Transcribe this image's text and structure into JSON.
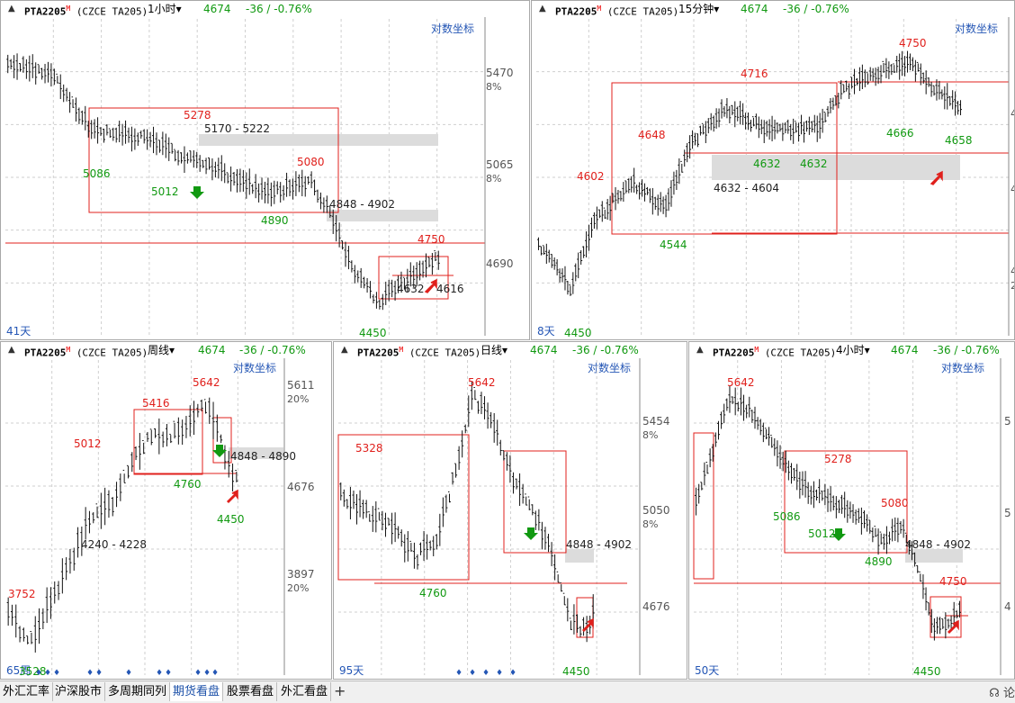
{
  "colors": {
    "up": "#000000",
    "red": "#e0201c",
    "green": "#119911",
    "blue": "#2456b5",
    "zone": "#dcdcdc"
  },
  "panels": [
    {
      "id": "p1",
      "symbol": "PTA2205",
      "m": "M",
      "code": "(CZCE TA205)",
      "period": "1小时",
      "price": "4674",
      "change": "-36 / -0.76%",
      "log_label": "对数坐标",
      "days": "41天",
      "right_labels": [
        {
          "t": "5470",
          "s": "8%"
        },
        {
          "t": "5065",
          "s": "8%"
        },
        {
          "t": "4690",
          "s": ""
        }
      ],
      "annotations": [
        {
          "t": "5278",
          "c": "red"
        },
        {
          "t": "5080",
          "c": "red"
        },
        {
          "t": "4750",
          "c": "red"
        },
        {
          "t": "5086",
          "c": "green"
        },
        {
          "t": "5012",
          "c": "green"
        },
        {
          "t": "4890",
          "c": "green"
        },
        {
          "t": "4450",
          "c": "green"
        },
        {
          "t": "5170 - 5222",
          "c": "black"
        },
        {
          "t": "4848 - 4902",
          "c": "black"
        },
        {
          "t": "4632",
          "c": "black"
        },
        {
          "t": "4616",
          "c": "black"
        }
      ]
    },
    {
      "id": "p2",
      "symbol": "PTA2205",
      "m": "M",
      "code": "(CZCE TA205)",
      "period": "15分钟",
      "price": "4674",
      "change": "-36 / -0.76%",
      "log_label": "对数坐标",
      "days": "8天",
      "right_labels": [
        {
          "t": "4",
          "s": ""
        },
        {
          "t": "4",
          "s": ""
        },
        {
          "t": "4",
          "s": "2"
        }
      ],
      "annotations": [
        {
          "t": "4750",
          "c": "red"
        },
        {
          "t": "4716",
          "c": "red"
        },
        {
          "t": "4648",
          "c": "red"
        },
        {
          "t": "4602",
          "c": "red"
        },
        {
          "t": "4666",
          "c": "green"
        },
        {
          "t": "4658",
          "c": "green"
        },
        {
          "t": "4632",
          "c": "green"
        },
        {
          "t": "4632",
          "c": "green"
        },
        {
          "t": "4544",
          "c": "green"
        },
        {
          "t": "4450",
          "c": "green"
        },
        {
          "t": "4632 - 4604",
          "c": "black"
        }
      ]
    },
    {
      "id": "p3",
      "symbol": "PTA2205",
      "m": "M",
      "code": "(CZCE TA205)",
      "period": "周线",
      "price": "4674",
      "change": "-36 / -0.76%",
      "log_label": "对数坐标",
      "days": "65周",
      "right_labels": [
        {
          "t": "5611",
          "s": "20%"
        },
        {
          "t": "4676",
          "s": ""
        },
        {
          "t": "3897",
          "s": "20%"
        }
      ],
      "annotations": [
        {
          "t": "5642",
          "c": "red"
        },
        {
          "t": "5416",
          "c": "red"
        },
        {
          "t": "5012",
          "c": "red"
        },
        {
          "t": "3752",
          "c": "red"
        },
        {
          "t": "4760",
          "c": "green"
        },
        {
          "t": "4450",
          "c": "green"
        },
        {
          "t": "3528",
          "c": "green"
        },
        {
          "t": "4848 - 4890",
          "c": "black"
        },
        {
          "t": "4240 - 4228",
          "c": "black"
        }
      ]
    },
    {
      "id": "p4",
      "symbol": "PTA2205",
      "m": "M",
      "code": "(CZCE TA205)",
      "period": "日线",
      "price": "4674",
      "change": "-36 / -0.76%",
      "log_label": "对数坐标",
      "days": "95天",
      "right_labels": [
        {
          "t": "5454",
          "s": "8%"
        },
        {
          "t": "5050",
          "s": "8%"
        },
        {
          "t": "4676",
          "s": ""
        }
      ],
      "annotations": [
        {
          "t": "5642",
          "c": "red"
        },
        {
          "t": "5328",
          "c": "red"
        },
        {
          "t": "4760",
          "c": "green"
        },
        {
          "t": "4450",
          "c": "green"
        },
        {
          "t": "4848 - 4902",
          "c": "black"
        }
      ]
    },
    {
      "id": "p5",
      "symbol": "PTA2205",
      "m": "M",
      "code": "(CZCE TA205)",
      "period": "4小时",
      "price": "4674",
      "change": "-36 / -0.76%",
      "log_label": "对数坐标",
      "days": "50天",
      "right_labels": [
        {
          "t": "5",
          "s": ""
        },
        {
          "t": "5",
          "s": ""
        },
        {
          "t": "4",
          "s": ""
        }
      ],
      "annotations": [
        {
          "t": "5642",
          "c": "red"
        },
        {
          "t": "5278",
          "c": "red"
        },
        {
          "t": "5080",
          "c": "red"
        },
        {
          "t": "4750",
          "c": "red"
        },
        {
          "t": "5086",
          "c": "green"
        },
        {
          "t": "5012",
          "c": "green"
        },
        {
          "t": "4890",
          "c": "green"
        },
        {
          "t": "4450",
          "c": "green"
        },
        {
          "t": "4848 - 4902",
          "c": "black"
        }
      ]
    }
  ],
  "tabs": [
    "外汇汇率",
    "沪深股市",
    "多周期同列",
    "期货看盘",
    "股票看盘",
    "外汇看盘"
  ],
  "active_tab": "期货看盘",
  "add_tab": "+",
  "right_corner": "论"
}
